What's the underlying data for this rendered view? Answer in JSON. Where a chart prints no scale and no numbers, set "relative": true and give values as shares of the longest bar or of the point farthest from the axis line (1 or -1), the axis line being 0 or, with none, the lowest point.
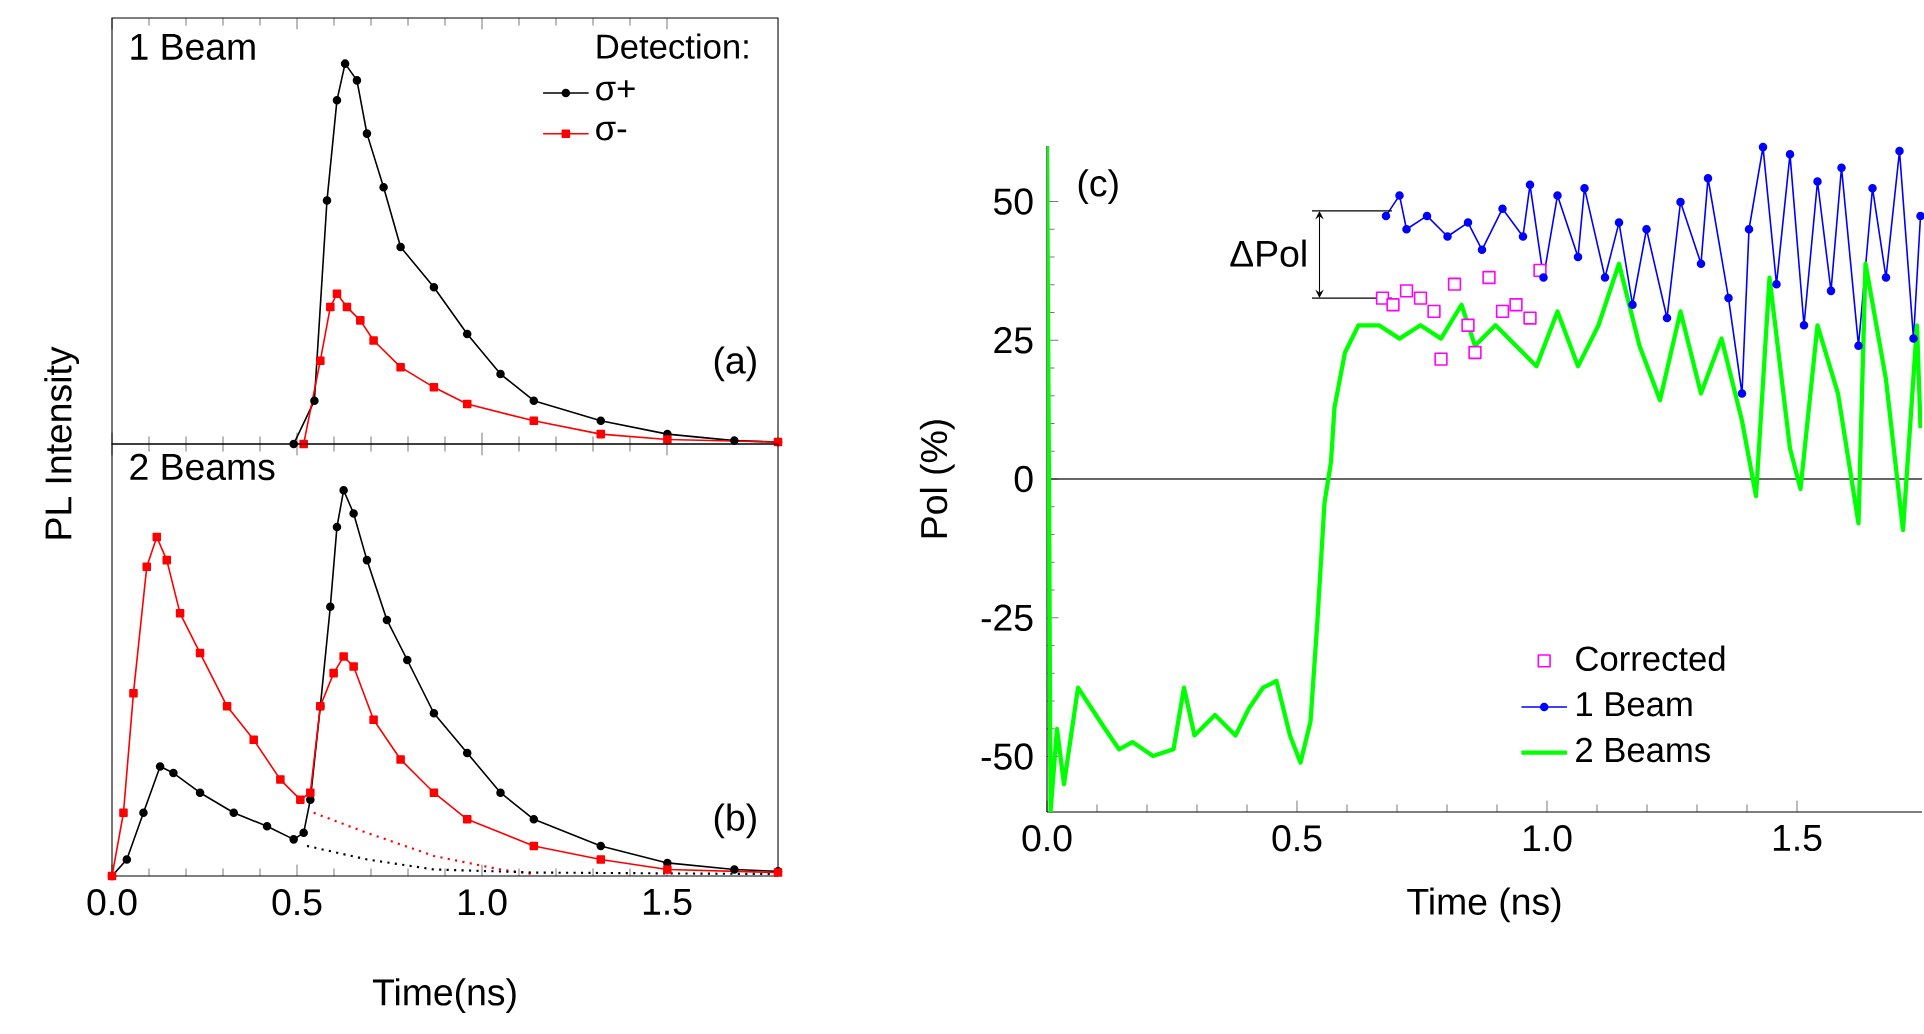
{
  "chart_data": [
    {
      "type": "line",
      "relative": true,
      "xlim": [
        0,
        1.8
      ],
      "xticks": [
        {
          "value": 0,
          "label": null
        },
        {
          "value": 0.5,
          "label": null
        },
        {
          "value": 1,
          "label": null
        },
        {
          "value": 1.5,
          "label": null
        }
      ],
      "tick_labels": false,
      "ylabel": "PL Intensity",
      "legend": "top right",
      "legend_title": "Detection:",
      "annotations": [
        "1 Beam",
        "(a)"
      ],
      "series": [
        {
          "name": "σ+",
          "color": "#000000",
          "marker": "circle",
          "x": [
            0.491,
            0.547,
            0.581,
            0.608,
            0.63,
            0.662,
            0.689,
            0.734,
            0.78,
            0.87,
            0.96,
            1.05,
            1.14,
            1.321,
            1.501,
            1.682,
            1.8
          ],
          "values": [
            0,
            0.114,
            0.64,
            0.904,
            1,
            0.956,
            0.816,
            0.675,
            0.518,
            0.412,
            0.289,
            0.184,
            0.114,
            0.061,
            0.026,
            0.009,
            0.005
          ]
        },
        {
          "name": "σ-",
          "color": "#ff0000",
          "marker": "square",
          "x": [
            0.518,
            0.563,
            0.59,
            0.608,
            0.635,
            0.671,
            0.707,
            0.78,
            0.87,
            0.96,
            1.14,
            1.321,
            1.501,
            1.8
          ],
          "values": [
            0,
            0.219,
            0.36,
            0.395,
            0.36,
            0.325,
            0.272,
            0.202,
            0.149,
            0.105,
            0.061,
            0.026,
            0.012,
            0.005
          ]
        }
      ]
    },
    {
      "type": "line",
      "relative": true,
      "xlim": [
        0,
        1.8
      ],
      "xticks": [
        {
          "value": 0,
          "label": "0.0"
        },
        {
          "value": 0.5,
          "label": "0.5"
        },
        {
          "value": 1,
          "label": "1.0"
        },
        {
          "value": 1.5,
          "label": "1.5"
        }
      ],
      "tick_labels": "x",
      "xlabel": "Time(ns)",
      "annotations": [
        "2 Beams",
        "(b)"
      ],
      "series": [
        {
          "color": "#000000",
          "marker": "circle",
          "x": [
            0,
            0.04,
            0.085,
            0.13,
            0.166,
            0.238,
            0.329,
            0.419,
            0.491,
            0.518,
            0.536,
            0.563,
            0.59,
            0.608,
            0.626,
            0.653,
            0.689,
            0.743,
            0.798,
            0.87,
            0.96,
            1.05,
            1.14,
            1.321,
            1.501,
            1.682,
            1.8
          ],
          "values": [
            0,
            0.043,
            0.164,
            0.284,
            0.267,
            0.216,
            0.164,
            0.129,
            0.095,
            0.112,
            0.198,
            0.44,
            0.698,
            0.905,
            1,
            0.94,
            0.819,
            0.664,
            0.56,
            0.422,
            0.319,
            0.216,
            0.147,
            0.078,
            0.034,
            0.017,
            0.012
          ]
        },
        {
          "color": "#ff0000",
          "marker": "square",
          "x": [
            0,
            0.031,
            0.058,
            0.094,
            0.121,
            0.148,
            0.184,
            0.238,
            0.311,
            0.383,
            0.455,
            0.509,
            0.536,
            0.563,
            0.599,
            0.626,
            0.653,
            0.707,
            0.78,
            0.87,
            0.96,
            1.14,
            1.321,
            1.501,
            1.8
          ],
          "values": [
            0,
            0.164,
            0.474,
            0.802,
            0.879,
            0.819,
            0.681,
            0.578,
            0.44,
            0.353,
            0.25,
            0.198,
            0.216,
            0.44,
            0.526,
            0.569,
            0.543,
            0.405,
            0.302,
            0.216,
            0.147,
            0.078,
            0.043,
            0.017,
            0.009
          ]
        },
        {
          "color": "#ff0000",
          "line_style": "dotted",
          "x": [
            0.545,
            0.689,
            0.87,
            1.05,
            1.14
          ],
          "values": [
            0.164,
            0.112,
            0.052,
            0.017,
            0.005
          ]
        },
        {
          "color": "#000000",
          "line_style": "dotted",
          "x": [
            0.527,
            0.689,
            0.87,
            1.14,
            1.8
          ],
          "values": [
            0.078,
            0.043,
            0.017,
            0.009,
            0.005
          ]
        }
      ]
    },
    {
      "type": "line",
      "xlim": [
        0,
        1.75
      ],
      "ylim": [
        -60,
        60
      ],
      "xticks": [
        {
          "value": 0,
          "label": "0.0"
        },
        {
          "value": 0.5,
          "label": "0.5"
        },
        {
          "value": 1,
          "label": "1.0"
        },
        {
          "value": 1.5,
          "label": "1.5"
        }
      ],
      "yticks": [
        -50,
        -25,
        0,
        25,
        50
      ],
      "xlabel": "Time (ns)",
      "ylabel": "Pol (%)",
      "legend": "bottom right",
      "annotations": [
        "(c)",
        {
          "text": "ΔPol",
          "x": 0.678,
          "y": 47.4
        }
      ],
      "ref_lines": [
        {
          "axis": "y",
          "value": 0,
          "color": "#333333"
        }
      ],
      "series": [
        {
          "name": "Corrected",
          "type": "scatter",
          "color": "#ff00ff",
          "marker": "square",
          "x": [
            0.671,
            0.692,
            0.719,
            0.747,
            0.774,
            0.788,
            0.815,
            0.842,
            0.856,
            0.884,
            0.911,
            0.938,
            0.966,
            0.986
          ],
          "values": [
            32.6,
            31.4,
            33.9,
            32.6,
            30.2,
            21.6,
            35.1,
            27.7,
            22.8,
            36.3,
            30.2,
            31.4,
            29,
            37.6
          ]
        },
        {
          "name": "1 Beam",
          "color": "#0000ff",
          "marker": "circle",
          "x": [
            0.678,
            0.705,
            0.719,
            0.76,
            0.801,
            0.842,
            0.87,
            0.911,
            0.952,
            0.966,
            0.993,
            1.021,
            1.062,
            1.075,
            1.116,
            1.144,
            1.171,
            1.199,
            1.24,
            1.267,
            1.308,
            1.322,
            1.363,
            1.39,
            1.404,
            1.432,
            1.459,
            1.486,
            1.514,
            1.541,
            1.568,
            1.589,
            1.623,
            1.651,
            1.678,
            1.705,
            1.733,
            1.747
          ],
          "values": [
            47.4,
            51.1,
            45,
            47.4,
            43.7,
            46.2,
            41.3,
            48.7,
            43.7,
            53,
            36.3,
            51.1,
            40,
            52.4,
            36.3,
            46.2,
            31.4,
            45,
            29,
            49.9,
            38.8,
            54.2,
            32.6,
            15.4,
            45,
            59.8,
            35.1,
            58.5,
            27.7,
            53.6,
            33.9,
            56.1,
            24,
            52.4,
            36.3,
            59.1,
            25.3,
            47.4
          ]
        },
        {
          "name": "2 Beams",
          "color": "#00ff00",
          "x": [
            0,
            0.004,
            0.007,
            0.02,
            0.034,
            0.062,
            0.089,
            0.116,
            0.144,
            0.171,
            0.212,
            0.253,
            0.274,
            0.295,
            0.336,
            0.377,
            0.404,
            0.432,
            0.459,
            0.486,
            0.507,
            0.527,
            0.541,
            0.555,
            0.568,
            0.575,
            0.596,
            0.623,
            0.664,
            0.705,
            0.747,
            0.788,
            0.829,
            0.856,
            0.897,
            0.938,
            0.979,
            1.021,
            1.062,
            1.103,
            1.144,
            1.185,
            1.226,
            1.267,
            1.308,
            1.349,
            1.39,
            1.418,
            1.445,
            1.486,
            1.507,
            1.541,
            1.582,
            1.623,
            1.637,
            1.678,
            1.712,
            1.74,
            1.747
          ],
          "values": [
            60,
            0,
            -60,
            -45,
            -55,
            -37.6,
            -41.3,
            -45,
            -48.7,
            -47.4,
            -49.9,
            -48.7,
            -37.6,
            -46.2,
            -42.5,
            -46.2,
            -41.3,
            -37.6,
            -36.4,
            -46.2,
            -51.1,
            -43.7,
            -25.3,
            -4.3,
            3.1,
            12.9,
            22.8,
            27.7,
            27.7,
            25.3,
            27.7,
            25.3,
            31.4,
            24,
            27.7,
            24,
            20.3,
            30.2,
            20.3,
            27.7,
            38.8,
            24,
            14.2,
            30.2,
            15.4,
            25.3,
            10.5,
            -3.1,
            36.3,
            5.5,
            -1.8,
            27.7,
            15.4,
            -8,
            38.8,
            17.9,
            -9.2,
            27.7,
            9.2
          ]
        }
      ]
    }
  ]
}
